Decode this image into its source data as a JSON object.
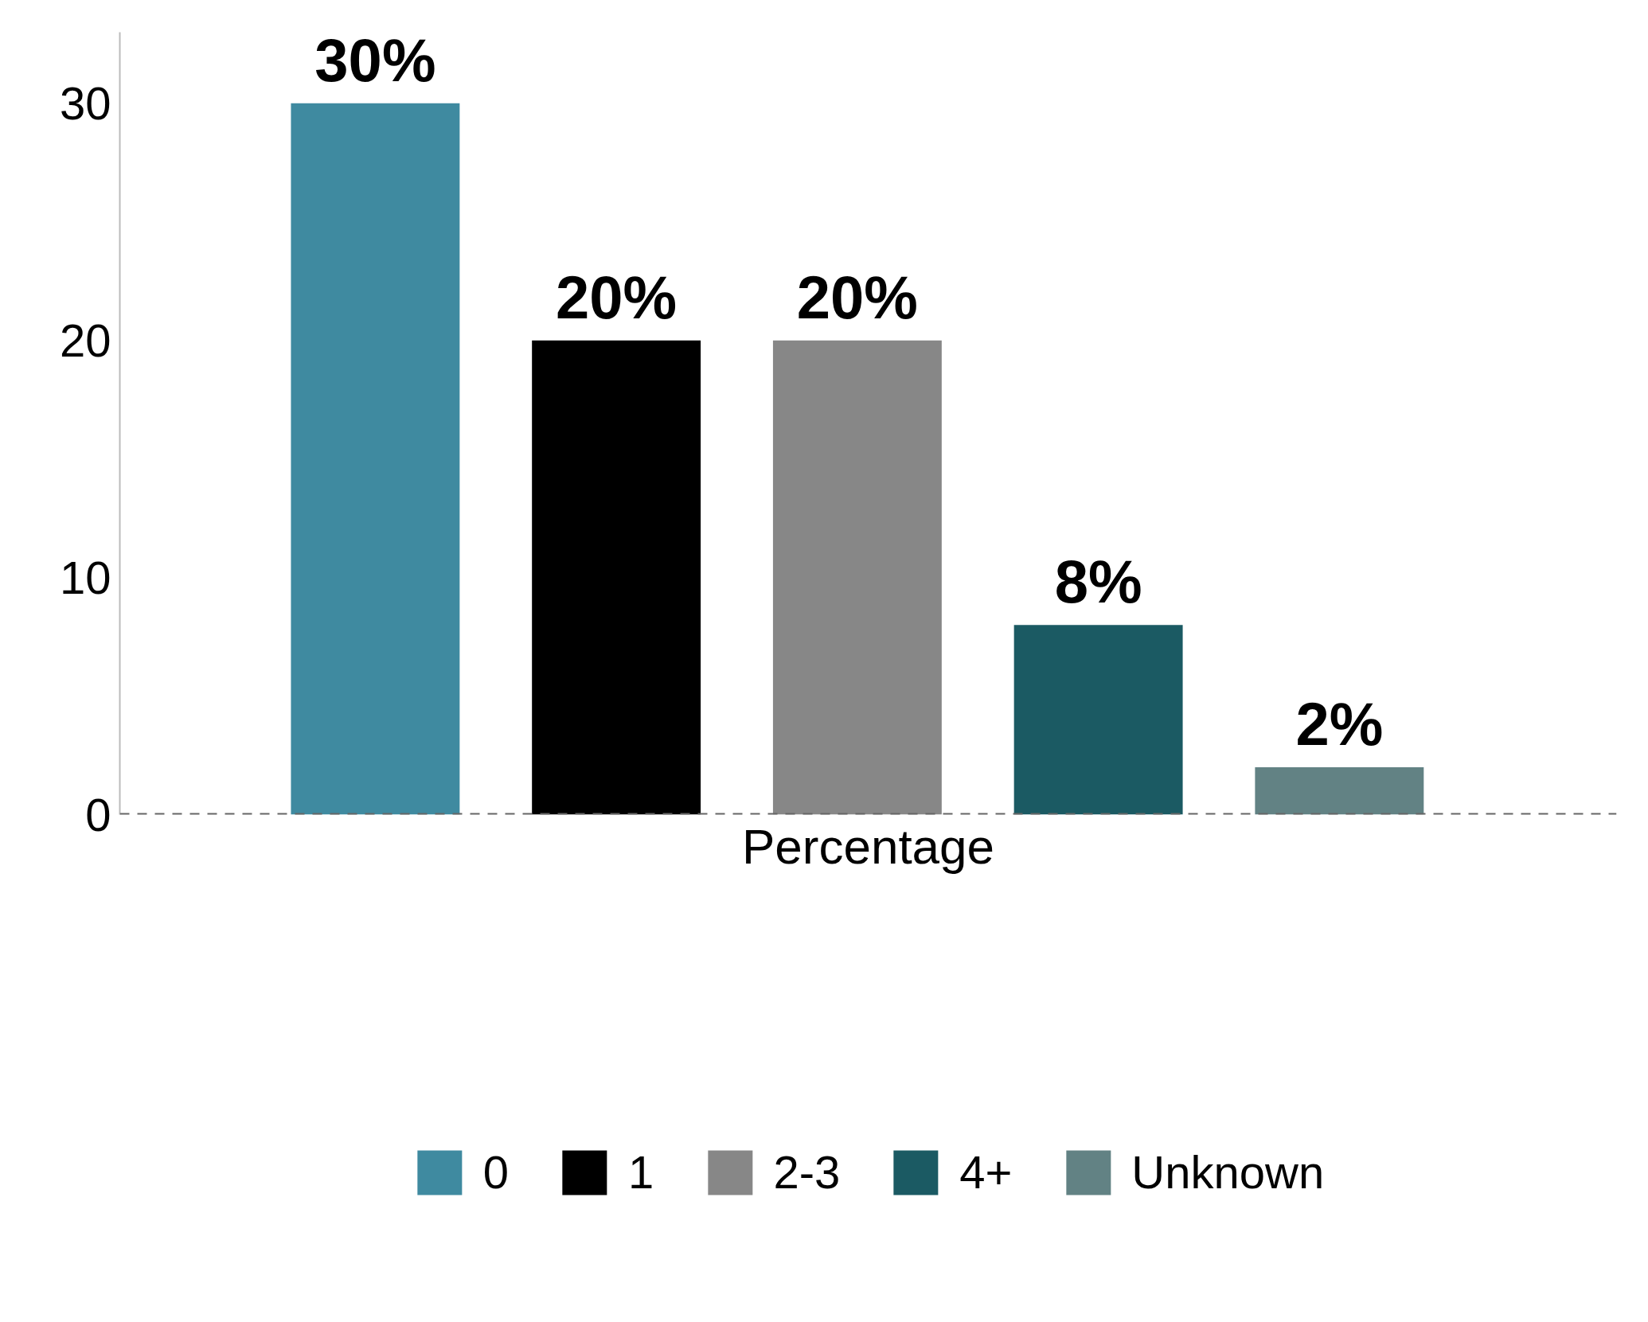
{
  "chart_data": {
    "type": "bar",
    "categories": [
      null
    ],
    "xlabel": "Percentage",
    "series": [
      {
        "name": "0",
        "color": "#3f8aa0",
        "values": [
          30
        ],
        "value_labels": [
          "30%"
        ]
      },
      {
        "name": "1",
        "color": "#000000",
        "values": [
          20
        ],
        "value_labels": [
          "20%"
        ]
      },
      {
        "name": "2-3",
        "color": "#878787",
        "values": [
          20
        ],
        "value_labels": [
          "20%"
        ]
      },
      {
        "name": "4+",
        "color": "#1b5a63",
        "values": [
          8
        ],
        "value_labels": [
          "8%"
        ]
      },
      {
        "name": "Unknown",
        "color": "#628284",
        "values": [
          2
        ],
        "value_labels": [
          "2%"
        ]
      }
    ],
    "ylim": [
      0,
      33
    ],
    "yticks": [
      0,
      10,
      20,
      30
    ],
    "grid": false,
    "legend": "bottom",
    "ref_lines": [
      {
        "axis": "y",
        "value": 0,
        "color": "#666666",
        "line_style": "dashed"
      }
    ]
  }
}
